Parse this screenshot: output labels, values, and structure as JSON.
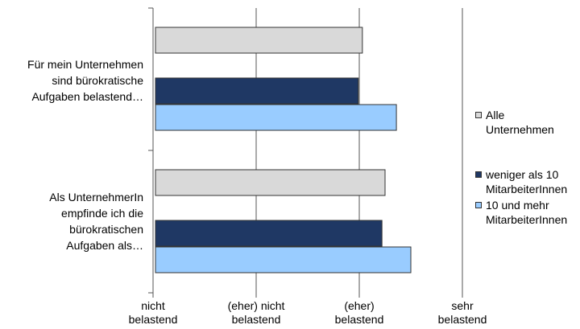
{
  "chart_data": {
    "type": "bar",
    "orientation": "horizontal",
    "categories": [
      "Für mein Unternehmen sind bürokratische Aufgaben belastend…",
      "Als UnternehmerIn empfinde ich die bürokratischen Aufgaben als…"
    ],
    "category_lines": [
      [
        "Für mein Unternehmen",
        "sind bürokratische",
        "Aufgaben belastend…"
      ],
      [
        "Als UnternehmerIn",
        "empfinde ich die",
        "bürokratischen",
        "Aufgaben als…"
      ]
    ],
    "series": [
      {
        "name": "Alle Unternehmen",
        "legend_lines": [
          "Alle",
          "Unternehmen"
        ],
        "color": "#d9d9d9",
        "values": [
          3.03,
          3.25
        ]
      },
      {
        "name": "weniger als 10 MitarbeiterInnen",
        "legend_lines": [
          "weniger als 10",
          "MitarbeiterInnen"
        ],
        "color": "#1f3864",
        "values": [
          2.99,
          3.22
        ]
      },
      {
        "name": "10 und mehr MitarbeiterInnen",
        "legend_lines": [
          "10 und mehr",
          "MitarbeiterInnen"
        ],
        "color": "#99ccff",
        "values": [
          3.36,
          3.5
        ]
      }
    ],
    "x_ticks": [
      {
        "value": 1,
        "lines": [
          "nicht",
          "belastend"
        ]
      },
      {
        "value": 2,
        "lines": [
          "(eher) nicht",
          "belastend"
        ]
      },
      {
        "value": 3,
        "lines": [
          "(eher)",
          "belastend"
        ]
      },
      {
        "value": 4,
        "lines": [
          "sehr",
          "belastend"
        ]
      }
    ],
    "xlim": [
      1,
      4
    ],
    "grid": true,
    "legend_position": "right"
  }
}
